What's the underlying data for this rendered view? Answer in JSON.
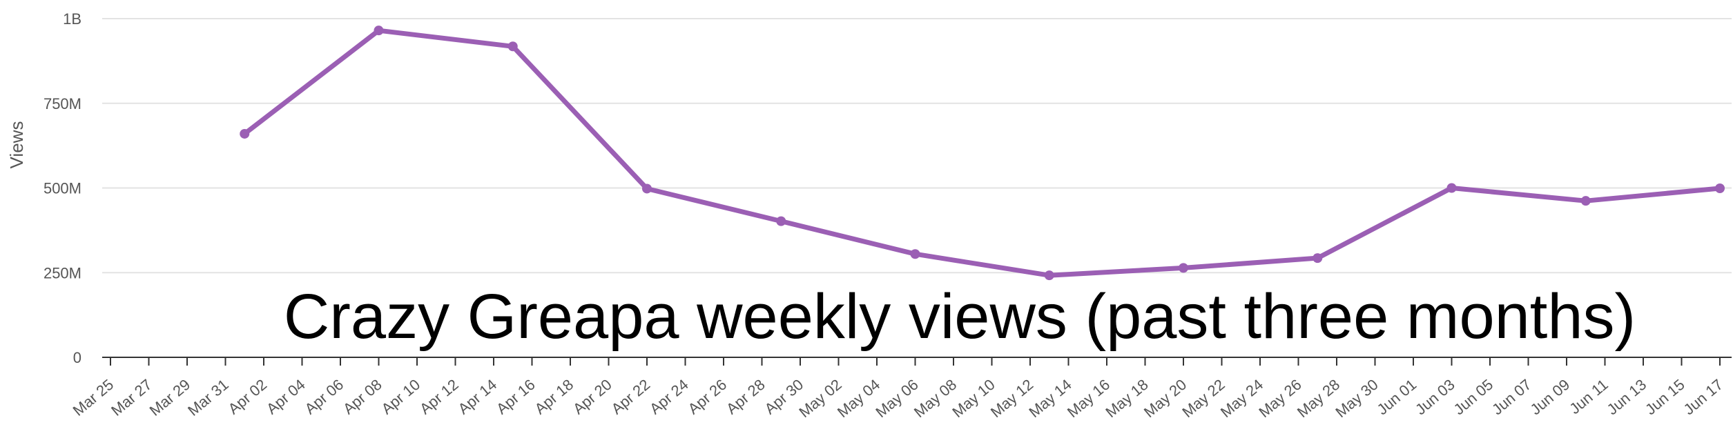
{
  "chart_data": {
    "type": "line",
    "title": "Crazy Greapa weekly views (past three months)",
    "xlabel": "",
    "ylabel": "Views",
    "ylim": [
      0,
      1000000000
    ],
    "y_ticks": [
      {
        "value": 0,
        "label": "0"
      },
      {
        "value": 250000000,
        "label": "250M"
      },
      {
        "value": 500000000,
        "label": "500M"
      },
      {
        "value": 750000000,
        "label": "750M"
      },
      {
        "value": 1000000000,
        "label": "1B"
      }
    ],
    "x_tick_labels": [
      "Mar 25",
      "Mar 27",
      "Mar 29",
      "Mar 31",
      "Apr 02",
      "Apr 04",
      "Apr 06",
      "Apr 08",
      "Apr 10",
      "Apr 12",
      "Apr 14",
      "Apr 16",
      "Apr 18",
      "Apr 20",
      "Apr 22",
      "Apr 24",
      "Apr 26",
      "Apr 28",
      "Apr 30",
      "May 02",
      "May 04",
      "May 06",
      "May 08",
      "May 10",
      "May 12",
      "May 14",
      "May 16",
      "May 18",
      "May 20",
      "May 22",
      "May 24",
      "May 26",
      "May 28",
      "May 30",
      "Jun 01",
      "Jun 03",
      "Jun 05",
      "Jun 07",
      "Jun 09",
      "Jun 11",
      "Jun 13",
      "Jun 15",
      "Jun 17"
    ],
    "grid": true,
    "colors": {
      "series": "#9b5fb4",
      "grid": "#e3e3e3",
      "axis": "#333333",
      "text": "#555555",
      "title": "#000000"
    },
    "series": [
      {
        "x": [
          "Apr 01",
          "Apr 08",
          "Apr 15",
          "Apr 22",
          "Apr 29",
          "May 06",
          "May 13",
          "May 20",
          "May 27",
          "Jun 03",
          "Jun 10",
          "Jun 17"
        ],
        "values": [
          660000000,
          965000000,
          918000000,
          498000000,
          402000000,
          305000000,
          242000000,
          264000000,
          293000000,
          500000000,
          462000000,
          499000000
        ]
      }
    ]
  }
}
